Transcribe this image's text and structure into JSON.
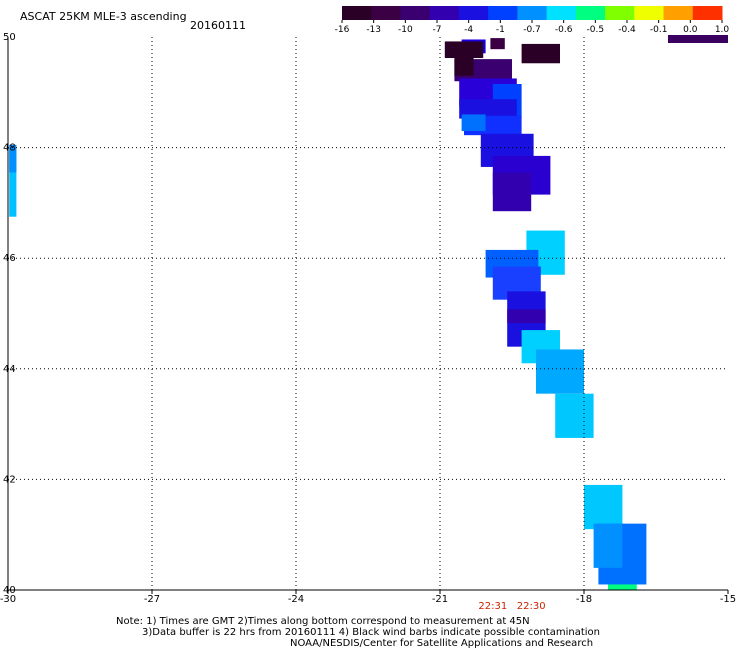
{
  "header": {
    "title": "ASCAT 25KM MLE-3 ascending",
    "date": "20160111"
  },
  "colorbar": {
    "tick_labels": [
      "-16",
      "-13",
      "-10",
      "-7",
      "-4",
      "-1",
      "-0.7",
      "-0.6",
      "-0.5",
      "-0.4",
      "-0.1",
      "0.0",
      "1.0"
    ],
    "colors": [
      "#2a0026",
      "#3b0044",
      "#3a0070",
      "#3300b0",
      "#1a10e0",
      "#0040ff",
      "#0090ff",
      "#00e0ff",
      "#00ff80",
      "#80ff00",
      "#f0ff00",
      "#ffa000",
      "#ff3000"
    ]
  },
  "chart_data": {
    "type": "heatmap",
    "x_ticks": [
      "-30",
      "-27",
      "-24",
      "-21",
      "-18",
      "-15"
    ],
    "y_ticks": [
      "50",
      "48",
      "46",
      "44",
      "42",
      "40"
    ],
    "xlim": [
      -30,
      -15
    ],
    "ylim": [
      40,
      50
    ],
    "grid": true,
    "time_labels": [
      {
        "text": "22:31",
        "lon": -19.9
      },
      {
        "text": "22:30",
        "lon": -19.1
      }
    ],
    "cells": [
      {
        "lon": -20.3,
        "lat": 49.83,
        "w": 0.5,
        "h": 0.25,
        "color": "#1a00e0"
      },
      {
        "lon": -20.5,
        "lat": 49.77,
        "w": 0.8,
        "h": 0.3,
        "color": "#2a0026"
      },
      {
        "lon": -19.8,
        "lat": 49.88,
        "w": 0.3,
        "h": 0.2,
        "color": "#3b0044"
      },
      {
        "lon": -18.9,
        "lat": 49.7,
        "w": 0.8,
        "h": 0.35,
        "color": "#2a0026"
      },
      {
        "lon": -20.1,
        "lat": 49.4,
        "w": 1.2,
        "h": 0.4,
        "color": "#3a0070"
      },
      {
        "lon": -20.5,
        "lat": 49.55,
        "w": 0.4,
        "h": 0.5,
        "color": "#2a0026"
      },
      {
        "lon": -20.0,
        "lat": 49.0,
        "w": 1.2,
        "h": 0.5,
        "color": "#2a00d8"
      },
      {
        "lon": -19.6,
        "lat": 48.85,
        "w": 0.6,
        "h": 0.6,
        "color": "#0040ff"
      },
      {
        "lon": -20.0,
        "lat": 48.7,
        "w": 1.2,
        "h": 0.35,
        "color": "#1a10e0"
      },
      {
        "lon": -19.9,
        "lat": 48.4,
        "w": 1.2,
        "h": 0.35,
        "color": "#1030ff"
      },
      {
        "lon": -20.3,
        "lat": 48.45,
        "w": 0.5,
        "h": 0.3,
        "color": "#0070ff"
      },
      {
        "lon": -19.6,
        "lat": 47.95,
        "w": 1.1,
        "h": 0.6,
        "color": "#1a10e0"
      },
      {
        "lon": -19.3,
        "lat": 47.5,
        "w": 1.2,
        "h": 0.7,
        "color": "#2a00d0"
      },
      {
        "lon": -19.5,
        "lat": 47.2,
        "w": 0.8,
        "h": 0.7,
        "color": "#3300b0"
      },
      {
        "lon": -29.9,
        "lat": 47.35,
        "w": 0.15,
        "h": 1.2,
        "color": "#00c0ff"
      },
      {
        "lon": -29.9,
        "lat": 47.8,
        "w": 0.15,
        "h": 0.5,
        "color": "#0090ff"
      },
      {
        "lon": -18.8,
        "lat": 46.1,
        "w": 0.8,
        "h": 0.8,
        "color": "#00d0ff"
      },
      {
        "lon": -19.5,
        "lat": 45.9,
        "w": 1.1,
        "h": 0.5,
        "color": "#0060ff"
      },
      {
        "lon": -19.4,
        "lat": 45.55,
        "w": 1.0,
        "h": 0.6,
        "color": "#1a40ff"
      },
      {
        "lon": -19.2,
        "lat": 44.9,
        "w": 0.8,
        "h": 1.0,
        "color": "#1a10e0"
      },
      {
        "lon": -19.2,
        "lat": 44.95,
        "w": 0.8,
        "h": 0.25,
        "color": "#3300b0"
      },
      {
        "lon": -18.9,
        "lat": 44.4,
        "w": 0.8,
        "h": 0.6,
        "color": "#00d0ff"
      },
      {
        "lon": -18.5,
        "lat": 43.95,
        "w": 1.0,
        "h": 0.8,
        "color": "#00a8ff"
      },
      {
        "lon": -18.2,
        "lat": 43.15,
        "w": 0.8,
        "h": 0.8,
        "color": "#00c8ff"
      },
      {
        "lon": -17.6,
        "lat": 41.5,
        "w": 0.8,
        "h": 0.8,
        "color": "#00c8ff"
      },
      {
        "lon": -17.2,
        "lat": 40.65,
        "w": 1.0,
        "h": 1.1,
        "color": "#0070ff"
      },
      {
        "lon": -17.5,
        "lat": 40.8,
        "w": 0.6,
        "h": 0.8,
        "color": "#0090ff"
      },
      {
        "lon": -17.2,
        "lat": 40.05,
        "w": 0.6,
        "h": 0.1,
        "color": "#00ff80"
      }
    ]
  },
  "notes": {
    "line1": "Note: 1) Times are GMT 2)Times along bottom correspond to measurement at 45N",
    "line2": "3)Data buffer is 22 hrs from 20160111 4) Black wind barbs indicate possible contamination",
    "line3": "NOAA/NESDIS/Center for Satellite Applications and Research"
  }
}
